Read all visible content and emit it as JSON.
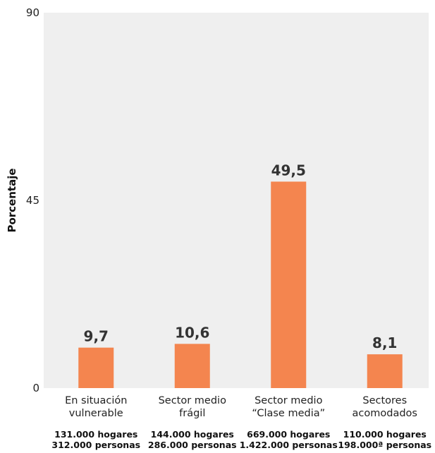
{
  "chart_data": {
    "type": "bar",
    "ylabel": "Porcentaje",
    "ylim": [
      0,
      90
    ],
    "yticks": [
      0,
      45,
      90
    ],
    "grid": false,
    "categories": [
      [
        "En situación",
        "vulnerable"
      ],
      [
        "Sector medio",
        "frágil"
      ],
      [
        "Sector medio",
        "“Clase media”"
      ],
      [
        "Sectores",
        "acomodados"
      ]
    ],
    "values": [
      9.7,
      10.6,
      49.5,
      8.1
    ],
    "value_labels": [
      "9,7",
      "10,6",
      "49,5",
      "8,1"
    ],
    "notes": [
      [
        "131.000 hogares",
        "312.000 personas"
      ],
      [
        "144.000 hogares",
        "286.000 personas"
      ],
      [
        "669.000 hogares",
        "1.422.000 personas"
      ],
      [
        "110.000 hogares",
        "198.000ª personas"
      ]
    ],
    "colors": {
      "bar": "#f4854f",
      "plot_bg": "#efefef"
    }
  }
}
